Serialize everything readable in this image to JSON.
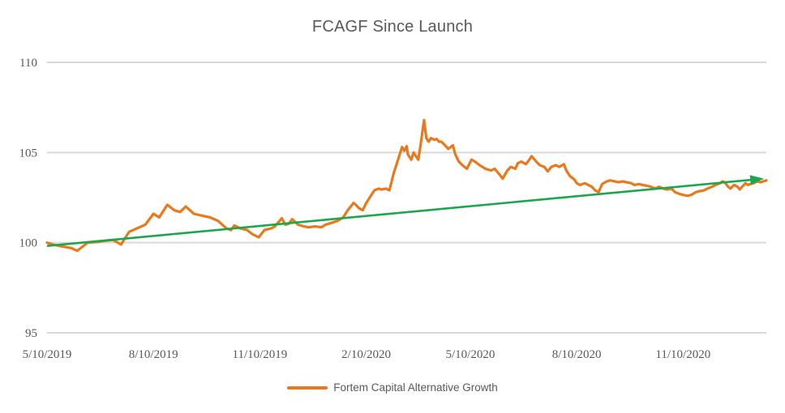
{
  "title": "FCAGF Since Launch",
  "colors": {
    "background": "#FFFFFF",
    "text": "#595959",
    "gridline": "#D9D9D9",
    "series": "#E8791D",
    "trendline": "#1CA64D"
  },
  "legend": {
    "label": "Fortem Capital Alternative Growth"
  },
  "chart_data": {
    "type": "line",
    "title": "FCAGF Since Launch",
    "xlabel": "",
    "ylabel": "",
    "ylim": [
      95,
      110
    ],
    "y_ticks": [
      95,
      100,
      105,
      110
    ],
    "grid": "horizontal",
    "legend_position": "bottom",
    "x_unit": "days since launch (5/10/2019)",
    "x_domain": [
      0,
      622
    ],
    "x_tick_days": [
      0,
      92,
      184,
      276,
      366,
      458,
      550
    ],
    "x_tick_labels": [
      "5/10/2019",
      "8/10/2019",
      "11/10/2019",
      "2/10/2020",
      "5/10/2020",
      "8/10/2020",
      "11/10/2020"
    ],
    "series": [
      {
        "name": "Fortem Capital Alternative Growth",
        "color": "#E8791D",
        "points": [
          [
            0,
            100.0
          ],
          [
            5,
            99.9
          ],
          [
            12,
            99.8
          ],
          [
            21,
            99.7
          ],
          [
            26,
            99.55
          ],
          [
            35,
            100.0
          ],
          [
            45,
            100.05
          ],
          [
            50,
            100.1
          ],
          [
            57,
            100.15
          ],
          [
            64,
            99.9
          ],
          [
            71,
            100.6
          ],
          [
            78,
            100.8
          ],
          [
            85,
            101.0
          ],
          [
            92,
            101.6
          ],
          [
            97,
            101.4
          ],
          [
            104,
            102.1
          ],
          [
            110,
            101.8
          ],
          [
            115,
            101.7
          ],
          [
            120,
            102.0
          ],
          [
            127,
            101.6
          ],
          [
            134,
            101.5
          ],
          [
            141,
            101.4
          ],
          [
            148,
            101.2
          ],
          [
            155,
            100.8
          ],
          [
            159,
            100.7
          ],
          [
            162,
            100.95
          ],
          [
            167,
            100.8
          ],
          [
            173,
            100.7
          ],
          [
            178,
            100.45
          ],
          [
            183,
            100.3
          ],
          [
            188,
            100.7
          ],
          [
            194,
            100.8
          ],
          [
            197,
            100.9
          ],
          [
            203,
            101.35
          ],
          [
            206,
            101.0
          ],
          [
            209,
            101.05
          ],
          [
            212,
            101.3
          ],
          [
            217,
            101.0
          ],
          [
            222,
            100.9
          ],
          [
            226,
            100.85
          ],
          [
            232,
            100.9
          ],
          [
            237,
            100.85
          ],
          [
            241,
            101.0
          ],
          [
            246,
            101.1
          ],
          [
            251,
            101.2
          ],
          [
            256,
            101.4
          ],
          [
            260,
            101.8
          ],
          [
            265,
            102.2
          ],
          [
            267,
            102.1
          ],
          [
            270,
            101.9
          ],
          [
            273,
            101.8
          ],
          [
            276,
            102.2
          ],
          [
            280,
            102.6
          ],
          [
            283,
            102.9
          ],
          [
            287,
            103.0
          ],
          [
            289,
            102.95
          ],
          [
            293,
            103.0
          ],
          [
            296,
            102.9
          ],
          [
            300,
            103.9
          ],
          [
            302,
            104.3
          ],
          [
            305,
            104.9
          ],
          [
            307,
            105.3
          ],
          [
            309,
            105.1
          ],
          [
            311,
            105.35
          ],
          [
            312,
            104.9
          ],
          [
            315,
            104.6
          ],
          [
            317,
            105.0
          ],
          [
            319,
            104.8
          ],
          [
            321,
            104.6
          ],
          [
            323,
            105.4
          ],
          [
            326,
            106.8
          ],
          [
            328,
            105.8
          ],
          [
            330,
            105.6
          ],
          [
            332,
            105.8
          ],
          [
            335,
            105.7
          ],
          [
            337,
            105.75
          ],
          [
            339,
            105.6
          ],
          [
            341,
            105.6
          ],
          [
            344,
            105.4
          ],
          [
            347,
            105.2
          ],
          [
            351,
            105.4
          ],
          [
            353,
            104.9
          ],
          [
            356,
            104.5
          ],
          [
            359,
            104.3
          ],
          [
            363,
            104.1
          ],
          [
            367,
            104.6
          ],
          [
            370,
            104.5
          ],
          [
            374,
            104.3
          ],
          [
            379,
            104.1
          ],
          [
            384,
            104.0
          ],
          [
            387,
            104.1
          ],
          [
            391,
            103.8
          ],
          [
            394,
            103.55
          ],
          [
            398,
            104.0
          ],
          [
            401,
            104.2
          ],
          [
            405,
            104.1
          ],
          [
            407,
            104.4
          ],
          [
            410,
            104.5
          ],
          [
            414,
            104.35
          ],
          [
            417,
            104.6
          ],
          [
            419,
            104.8
          ],
          [
            423,
            104.5
          ],
          [
            426,
            104.3
          ],
          [
            430,
            104.2
          ],
          [
            433,
            103.95
          ],
          [
            436,
            104.2
          ],
          [
            440,
            104.3
          ],
          [
            443,
            104.2
          ],
          [
            447,
            104.35
          ],
          [
            449,
            104.0
          ],
          [
            452,
            103.7
          ],
          [
            456,
            103.5
          ],
          [
            458,
            103.3
          ],
          [
            461,
            103.2
          ],
          [
            465,
            103.3
          ],
          [
            468,
            103.2
          ],
          [
            471,
            103.1
          ],
          [
            474,
            102.9
          ],
          [
            477,
            102.8
          ],
          [
            480,
            103.25
          ],
          [
            484,
            103.4
          ],
          [
            487,
            103.45
          ],
          [
            491,
            103.4
          ],
          [
            494,
            103.35
          ],
          [
            498,
            103.4
          ],
          [
            501,
            103.35
          ],
          [
            505,
            103.3
          ],
          [
            508,
            103.2
          ],
          [
            512,
            103.25
          ],
          [
            515,
            103.2
          ],
          [
            519,
            103.15
          ],
          [
            522,
            103.1
          ],
          [
            526,
            103.0
          ],
          [
            529,
            103.1
          ],
          [
            533,
            103.0
          ],
          [
            536,
            102.95
          ],
          [
            540,
            103.0
          ],
          [
            543,
            102.8
          ],
          [
            547,
            102.7
          ],
          [
            550,
            102.65
          ],
          [
            554,
            102.6
          ],
          [
            557,
            102.65
          ],
          [
            561,
            102.8
          ],
          [
            564,
            102.85
          ],
          [
            568,
            102.9
          ],
          [
            571,
            103.0
          ],
          [
            575,
            103.1
          ],
          [
            578,
            103.2
          ],
          [
            582,
            103.3
          ],
          [
            584,
            103.4
          ],
          [
            586,
            103.35
          ],
          [
            589,
            103.1
          ],
          [
            591,
            103.0
          ],
          [
            594,
            103.2
          ],
          [
            597,
            103.1
          ],
          [
            599,
            102.95
          ],
          [
            601,
            103.1
          ],
          [
            604,
            103.3
          ],
          [
            606,
            103.2
          ],
          [
            608,
            103.25
          ],
          [
            611,
            103.3
          ],
          [
            614,
            103.4
          ],
          [
            617,
            103.35
          ],
          [
            619,
            103.4
          ],
          [
            622,
            103.45
          ]
        ]
      }
    ],
    "trendline": {
      "name": "linear trend arrow",
      "color": "#1CA64D",
      "start": [
        0,
        99.82
      ],
      "end": [
        620,
        103.55
      ],
      "arrow": true
    }
  }
}
